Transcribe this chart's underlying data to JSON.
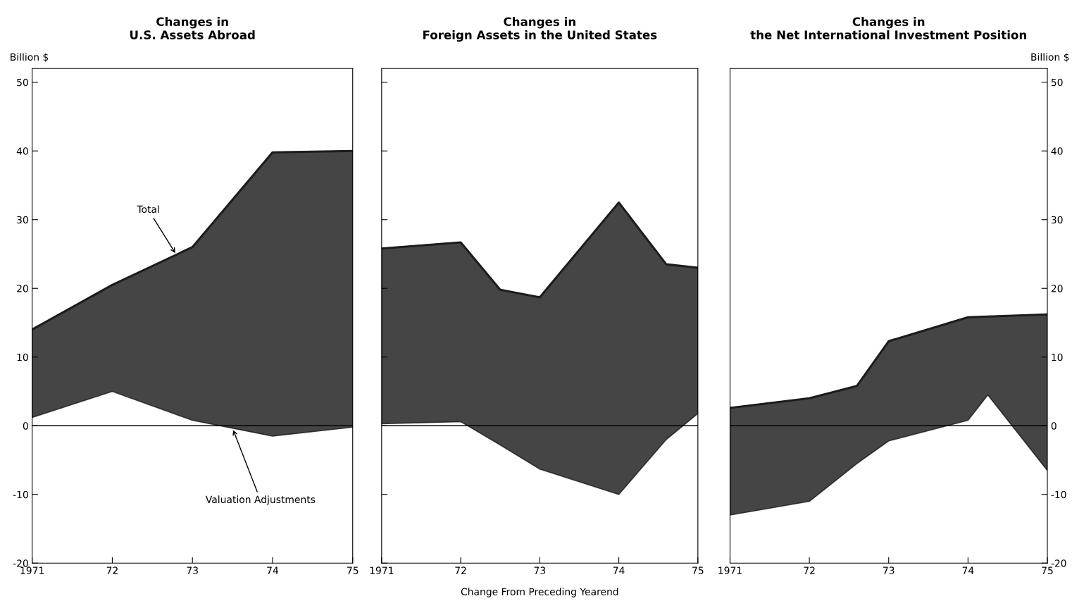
{
  "chart_data": [
    {
      "type": "line",
      "title": "Changes in\nU.S. Assets Abroad",
      "ylabel": "Billion $",
      "x": [
        1971,
        1972,
        1973,
        1974,
        1975
      ],
      "series": [
        {
          "type": "line",
          "color": "#1c1c1c",
          "values": [
            14,
            20.5,
            26,
            39.8,
            40
          ],
          "upper": [
            14,
            20.5,
            26,
            39.8,
            40
          ],
          "lower": [
            1.2,
            5,
            0.8,
            -1.5,
            -0.2
          ]
        }
      ],
      "xlim": [
        1971,
        1975
      ],
      "xticks": [
        {
          "value": 1971,
          "label": "1971"
        },
        {
          "value": 1972,
          "label": "72"
        },
        {
          "value": 1973,
          "label": "73"
        },
        {
          "value": 1974,
          "label": "74"
        },
        {
          "value": 1975,
          "label": "75"
        }
      ],
      "ylim": [
        -20,
        52
      ],
      "yticks": [
        -20,
        -10,
        0,
        10,
        20,
        30,
        40,
        50
      ],
      "ref_lines": [
        {
          "axis": "y",
          "value": 0,
          "color": "#000000"
        }
      ],
      "annotations": [
        {
          "text": "Total",
          "x": 1972.8,
          "y": 24.9
        },
        {
          "text": "Valuation Adjustments",
          "x": 1973.5,
          "y": -0.35
        }
      ],
      "grid": false
    },
    {
      "type": "line",
      "title": "Changes in\nForeign Assets in the United States",
      "xlabel": "Change From Preceding Yearend",
      "x": [
        1971,
        1972,
        1972.5,
        1973,
        1974,
        1974.6,
        1975
      ],
      "series": [
        {
          "type": "line",
          "color": "#1c1c1c",
          "values": [
            25.8,
            26.7,
            19.8,
            18.7,
            32.5,
            23.5,
            23
          ],
          "upper": [
            25.8,
            26.7,
            19.8,
            18.7,
            32.5,
            23.5,
            23
          ],
          "lower": [
            0.3,
            0.6,
            -2.8,
            -6.3,
            -10,
            -2,
            1.8
          ]
        }
      ],
      "xlim": [
        1971,
        1975
      ],
      "xticks": [
        {
          "value": 1971,
          "label": "1971"
        },
        {
          "value": 1972,
          "label": "72"
        },
        {
          "value": 1973,
          "label": "73"
        },
        {
          "value": 1974,
          "label": "74"
        },
        {
          "value": 1975,
          "label": "75"
        }
      ],
      "ylim": [
        -20,
        52
      ],
      "yticks": [
        {
          "value": -20,
          "label": null
        },
        {
          "value": -10,
          "label": null
        },
        {
          "value": 0,
          "label": null
        },
        {
          "value": 10,
          "label": null
        },
        {
          "value": 20,
          "label": null
        },
        {
          "value": 30,
          "label": null
        },
        {
          "value": 40,
          "label": null
        },
        {
          "value": 50,
          "label": null
        }
      ],
      "tick_labels": "x",
      "ref_lines": [
        {
          "axis": "y",
          "value": 0,
          "color": "#000000"
        }
      ],
      "grid": false
    },
    {
      "type": "line",
      "title": "Changes in\nthe Net International Investment Position",
      "y2label": "Billion $",
      "x": [
        1971,
        1972,
        1972.6,
        1973,
        1974,
        1974.25,
        1975
      ],
      "series": [
        {
          "type": "line",
          "axis": "y2",
          "color": "#1c1c1c",
          "values": [
            2.6,
            4,
            5.8,
            12.3,
            15.8,
            15.9,
            16.2
          ],
          "upper": [
            2.6,
            4,
            5.8,
            12.3,
            15.8,
            15.9,
            16.2
          ],
          "lower": [
            -13,
            -11,
            -5.5,
            -2.2,
            0.8,
            4.5,
            -6.5
          ]
        }
      ],
      "xlim": [
        1971,
        1975
      ],
      "xticks": [
        {
          "value": 1971,
          "label": "1971"
        },
        {
          "value": 1972,
          "label": "72"
        },
        {
          "value": 1973,
          "label": "73"
        },
        {
          "value": 1974,
          "label": "74"
        },
        {
          "value": 1975,
          "label": "75"
        }
      ],
      "y2lim": [
        -20,
        52
      ],
      "y2ticks": [
        -20,
        -10,
        0,
        10,
        20,
        30,
        40,
        50
      ],
      "ref_lines": [
        {
          "axis": "y2",
          "value": 0,
          "color": "#000000"
        }
      ],
      "grid": false
    }
  ]
}
